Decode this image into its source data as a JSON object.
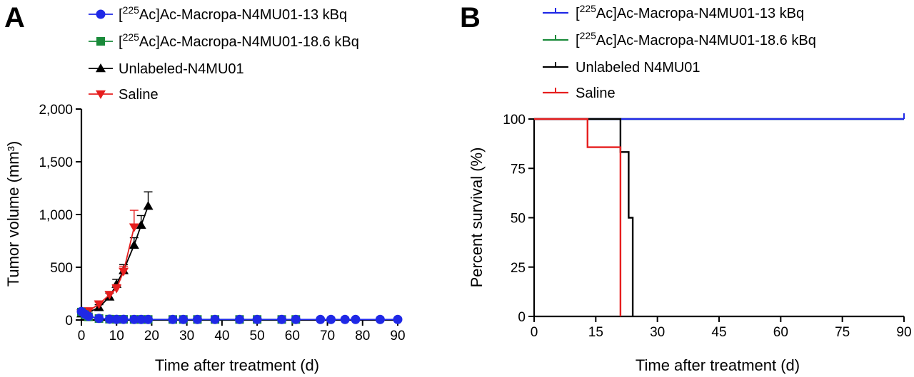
{
  "chart_data": [
    {
      "panel": "A",
      "type": "line",
      "xlabel": "Time after treatment (d)",
      "ylabel": "Tumor volume (mm³)",
      "xlim": [
        0,
        90
      ],
      "ylim": [
        0,
        2000
      ],
      "xticks": [
        "0",
        "10",
        "20",
        "30",
        "40",
        "50",
        "60",
        "70",
        "80",
        "90"
      ],
      "yticks": [
        "0",
        "500",
        "1,000",
        "1,500",
        "2,000"
      ],
      "legend": "top-left",
      "series": [
        {
          "name_pre": "[",
          "name_sup": "225",
          "name_post": "Ac]Ac-Macropa-N4MU01-13 kBq",
          "color": "#1f28e6",
          "marker": "circle",
          "x": [
            0,
            1,
            2,
            5,
            8,
            10,
            12,
            15,
            17,
            19,
            26,
            29,
            33,
            38,
            45,
            50,
            57,
            61,
            68,
            71,
            75,
            78,
            85,
            90
          ],
          "y": [
            80,
            55,
            35,
            15,
            8,
            6,
            6,
            5,
            5,
            5,
            5,
            5,
            5,
            5,
            5,
            5,
            5,
            5,
            5,
            5,
            5,
            5,
            5,
            5
          ]
        },
        {
          "name_pre": "[",
          "name_sup": "225",
          "name_post": "Ac]Ac-Macropa-N4MU01-18.6 kBq",
          "color": "#1a8a3a",
          "marker": "square",
          "x": [
            0,
            1,
            2,
            5,
            8,
            10,
            12,
            15,
            17,
            19,
            26,
            29,
            33,
            38,
            45,
            50,
            57,
            61
          ],
          "y": [
            75,
            50,
            30,
            14,
            8,
            6,
            6,
            5,
            5,
            5,
            5,
            5,
            5,
            5,
            5,
            5,
            5,
            5
          ]
        },
        {
          "name": "Unlabeled-N4MU01",
          "color": "#000000",
          "marker": "triangle-up",
          "x": [
            0,
            2,
            5,
            8,
            10,
            12,
            15,
            17,
            19
          ],
          "y": [
            60,
            70,
            120,
            220,
            340,
            470,
            710,
            900,
            1080
          ],
          "err": [
            10,
            15,
            25,
            35,
            45,
            55,
            70,
            90,
            135
          ]
        },
        {
          "name": "Saline",
          "color": "#e61e1e",
          "marker": "triangle-down",
          "x": [
            0,
            2,
            5,
            8,
            10,
            12,
            15
          ],
          "y": [
            65,
            85,
            150,
            240,
            300,
            460,
            880
          ],
          "err": [
            10,
            15,
            20,
            30,
            35,
            50,
            160
          ]
        }
      ]
    },
    {
      "panel": "B",
      "type": "line",
      "step": true,
      "xlabel": "Time after treatment (d)",
      "ylabel": "Percent survival (%)",
      "xlim": [
        0,
        90
      ],
      "ylim": [
        0,
        100
      ],
      "xticks": [
        "0",
        "15",
        "30",
        "45",
        "60",
        "75",
        "90"
      ],
      "yticks": [
        "0",
        "25",
        "50",
        "75",
        "100"
      ],
      "legend": "top-left",
      "series": [
        {
          "name_pre": "[",
          "name_sup": "225",
          "name_post": "Ac]Ac-Macropa-N4MU01-13 kBq",
          "color": "#1f28e6",
          "x": [
            0,
            90
          ],
          "y": [
            100,
            100
          ]
        },
        {
          "name_pre": "[",
          "name_sup": "225",
          "name_post": "Ac]Ac-Macropa-N4MU01-18.6 kBq",
          "color": "#1a8a3a",
          "x": [
            0,
            90
          ],
          "y": [
            100,
            100
          ]
        },
        {
          "name": "Unlabeled N4MU01",
          "color": "#000000",
          "x": [
            0,
            21,
            23,
            24
          ],
          "y": [
            100,
            83.3,
            50,
            0
          ]
        },
        {
          "name": "Saline",
          "color": "#e61e1e",
          "x": [
            0,
            13,
            21
          ],
          "y": [
            100,
            85.7,
            0
          ]
        }
      ]
    }
  ]
}
